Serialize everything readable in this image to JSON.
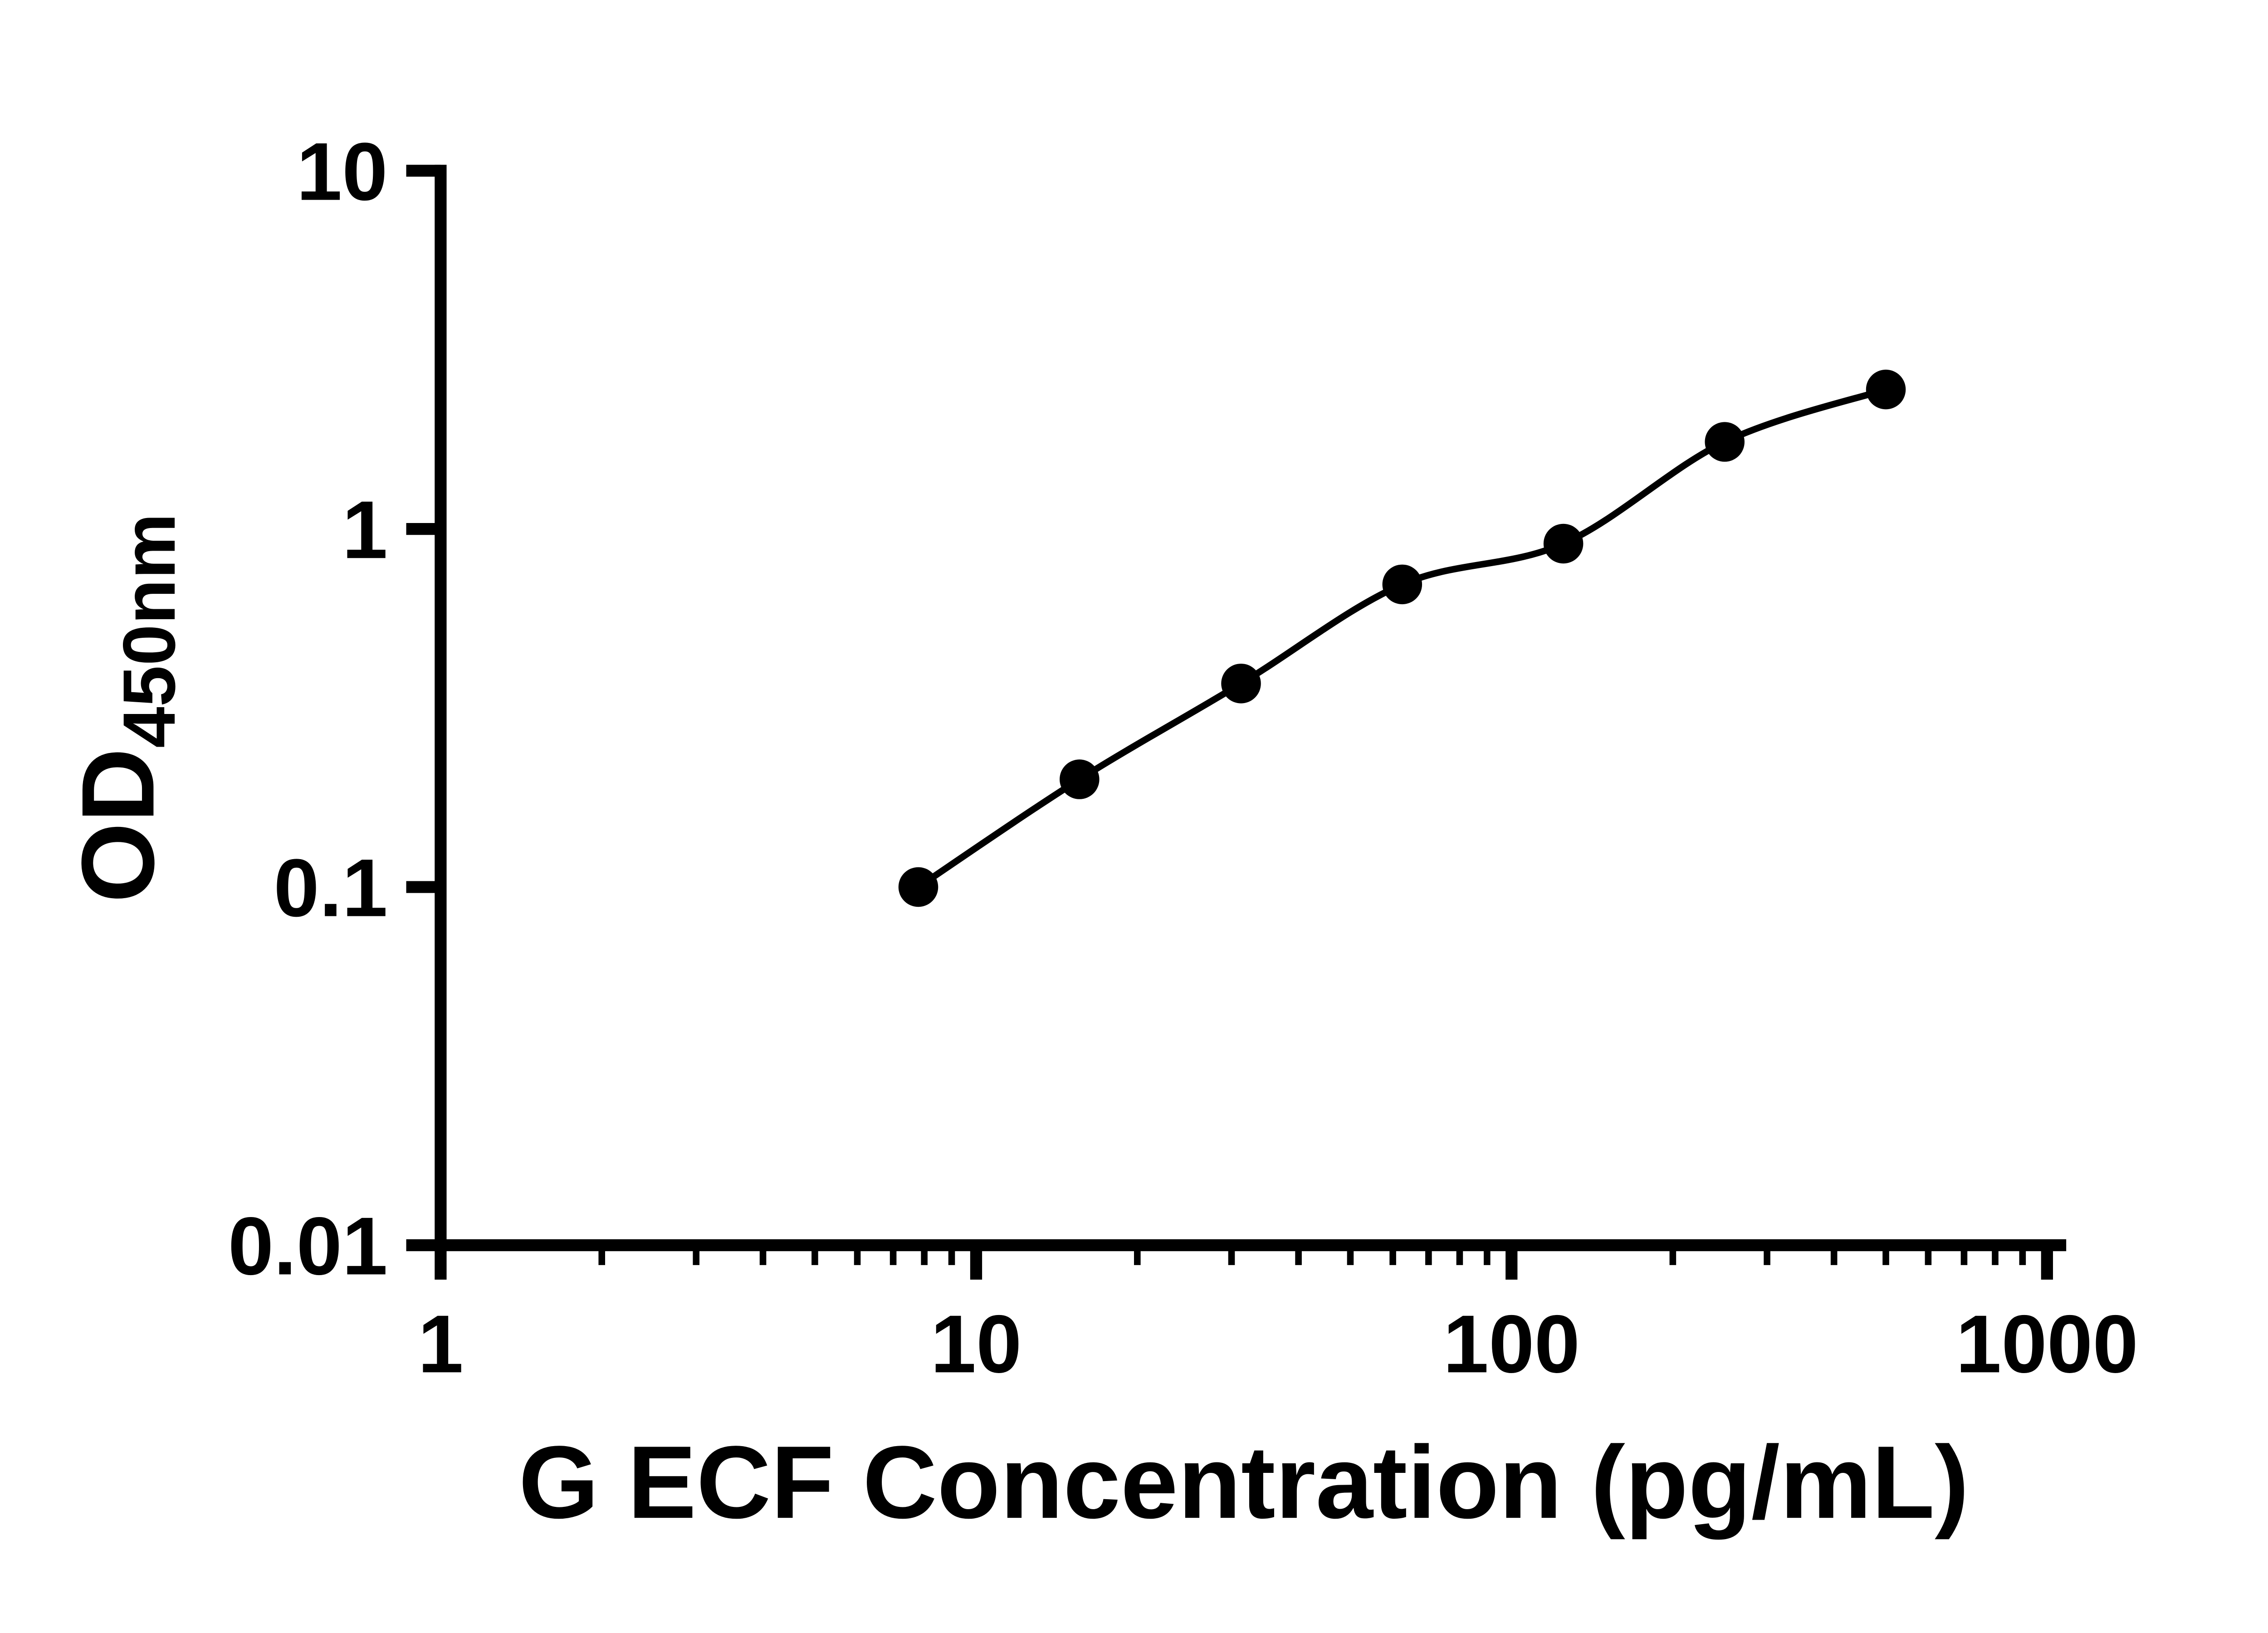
{
  "chart_data": {
    "type": "scatter",
    "title": "",
    "xlabel": "G ECF Concentration (pg/mL)",
    "ylabel_main": "OD",
    "ylabel_sub": "450nm",
    "x_scale": "log",
    "y_scale": "log",
    "xlim": [
      1,
      1000
    ],
    "ylim": [
      0.01,
      10
    ],
    "x_ticks": [
      1,
      10,
      100,
      1000
    ],
    "x_tick_labels": [
      "1",
      "10",
      "100",
      "1000"
    ],
    "y_ticks": [
      0.01,
      0.1,
      1,
      10
    ],
    "y_tick_labels": [
      "0.01",
      "0.1",
      "1",
      "10"
    ],
    "grid": "off",
    "legend": "none",
    "series": [
      {
        "name": "standard-curve",
        "marker": "filled-circle",
        "x": [
          7.8,
          15.6,
          31.25,
          62.5,
          125,
          250,
          500
        ],
        "y": [
          0.1,
          0.2,
          0.37,
          0.7,
          0.91,
          1.75,
          2.45
        ]
      }
    ],
    "curve_style": "smooth fit line through points",
    "marker_color": "#000000",
    "line_color": "#000000",
    "axis_color": "#000000"
  }
}
